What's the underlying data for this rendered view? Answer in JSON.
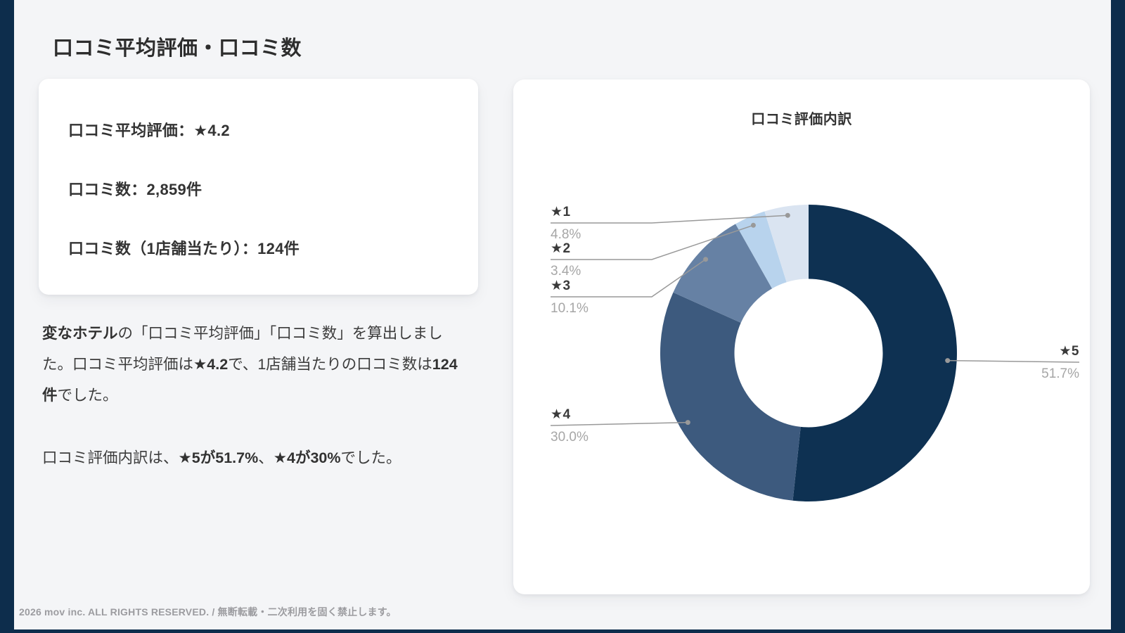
{
  "page": {
    "title": "口コミ平均評価・口コミ数",
    "footer": "2026 mov inc. ALL RIGHTS RESERVED. / 無断転載・二次利用を固く禁止します。"
  },
  "summary_card": {
    "lines": [
      "口コミ平均評価：★4.2",
      "口コミ数：2,859件",
      "口コミ数（1店舗当たり）：124件"
    ]
  },
  "description": {
    "p1": [
      {
        "text": "変なホテル",
        "bold": true
      },
      {
        "text": "の「口コミ平均評価」「口コミ数」を算出しました。口コミ平均評価は",
        "bold": false
      },
      {
        "text": "★4.2",
        "bold": true
      },
      {
        "text": "で、1店舗当たりの口コミ数は",
        "bold": false
      },
      {
        "text": "124件",
        "bold": true
      },
      {
        "text": "でした。",
        "bold": false
      }
    ],
    "p2": [
      {
        "text": "口コミ評価内訳は、",
        "bold": false
      },
      {
        "text": "★5が51.7%",
        "bold": true
      },
      {
        "text": "、",
        "bold": false
      },
      {
        "text": "★4が30%",
        "bold": true
      },
      {
        "text": "でした。",
        "bold": false
      }
    ]
  },
  "chart_data": {
    "type": "pie",
    "subtype": "donut",
    "title": "口コミ評価内訳",
    "donut_hole_ratio": 0.5,
    "start_angle_deg": 0,
    "direction": "clockwise",
    "slices": [
      {
        "label": "★5",
        "pct": 51.7,
        "pct_label": "51.7%",
        "color": "#0e3152"
      },
      {
        "label": "★4",
        "pct": 30.0,
        "pct_label": "30.0%",
        "color": "#3d5a7e"
      },
      {
        "label": "★3",
        "pct": 10.1,
        "pct_label": "10.1%",
        "color": "#6681a4"
      },
      {
        "label": "★2",
        "pct": 3.4,
        "pct_label": "3.4%",
        "color": "#b8d3ed"
      },
      {
        "label": "★1",
        "pct": 4.8,
        "pct_label": "4.8%",
        "color": "#dae4f1"
      }
    ],
    "colors": {
      "leader_line": "#999999",
      "accent_navy": "#0d2d4c",
      "background": "#f4f5f7"
    }
  }
}
